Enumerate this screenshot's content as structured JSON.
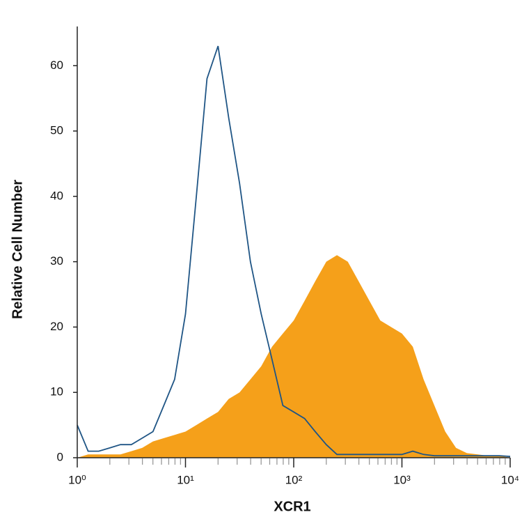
{
  "chart_data": {
    "type": "histogram-overlay",
    "x_label": "XCR1",
    "y_label": "Relative Cell Number",
    "xscale": "log",
    "xlim": [
      1,
      10000
    ],
    "xticks": [
      {
        "value": 1,
        "label": "10⁰"
      },
      {
        "value": 10,
        "label": "10¹"
      },
      {
        "value": 100,
        "label": "10²"
      },
      {
        "value": 1000,
        "label": "10³"
      },
      {
        "value": 10000,
        "label": "10⁴"
      }
    ],
    "xminorticks": [
      2,
      3,
      4,
      5,
      6,
      7,
      8,
      9,
      20,
      30,
      40,
      50,
      60,
      70,
      80,
      90,
      200,
      300,
      400,
      500,
      600,
      700,
      800,
      900,
      2000,
      3000,
      4000,
      5000,
      6000,
      7000,
      8000,
      9000
    ],
    "ylim": [
      0,
      66
    ],
    "yticks": [
      0,
      10,
      20,
      30,
      40,
      50,
      60
    ],
    "x": [
      1,
      1.26,
      1.58,
      2,
      2.51,
      3.16,
      3.98,
      5.01,
      6.31,
      7.94,
      10,
      12.6,
      15.8,
      20,
      25.1,
      31.6,
      39.8,
      50.1,
      63.1,
      79.4,
      100,
      126,
      158,
      200,
      251,
      316,
      398,
      501,
      631,
      794,
      1000,
      1259,
      1585,
      1995,
      2512,
      3162,
      3981,
      5012,
      6310,
      7943,
      10000
    ],
    "series": [
      {
        "color": "#f5a01a",
        "fill": true,
        "values": [
          0,
          0.5,
          0.5,
          0.5,
          0.5,
          1,
          1.5,
          2.5,
          3,
          3.5,
          4,
          5,
          6,
          7,
          9,
          10,
          12,
          14,
          17,
          19,
          21,
          24,
          27,
          30,
          31,
          30,
          27,
          24,
          21,
          20,
          19,
          17,
          12,
          8,
          4,
          1.5,
          0.7,
          0.5,
          0.3,
          0.3,
          0
        ]
      },
      {
        "color": "#1f5585",
        "fill": false,
        "values": [
          5,
          1,
          1,
          1.5,
          2,
          2,
          3,
          4,
          8,
          12,
          22,
          40,
          58,
          63,
          52,
          42,
          30,
          22,
          15,
          8,
          7,
          6,
          4,
          2,
          0.5,
          0.5,
          0.5,
          0.5,
          0.5,
          0.5,
          0.5,
          1,
          0.5,
          0.3,
          0.3,
          0.3,
          0.3,
          0.3,
          0.3,
          0.3,
          0.2
        ]
      }
    ]
  }
}
